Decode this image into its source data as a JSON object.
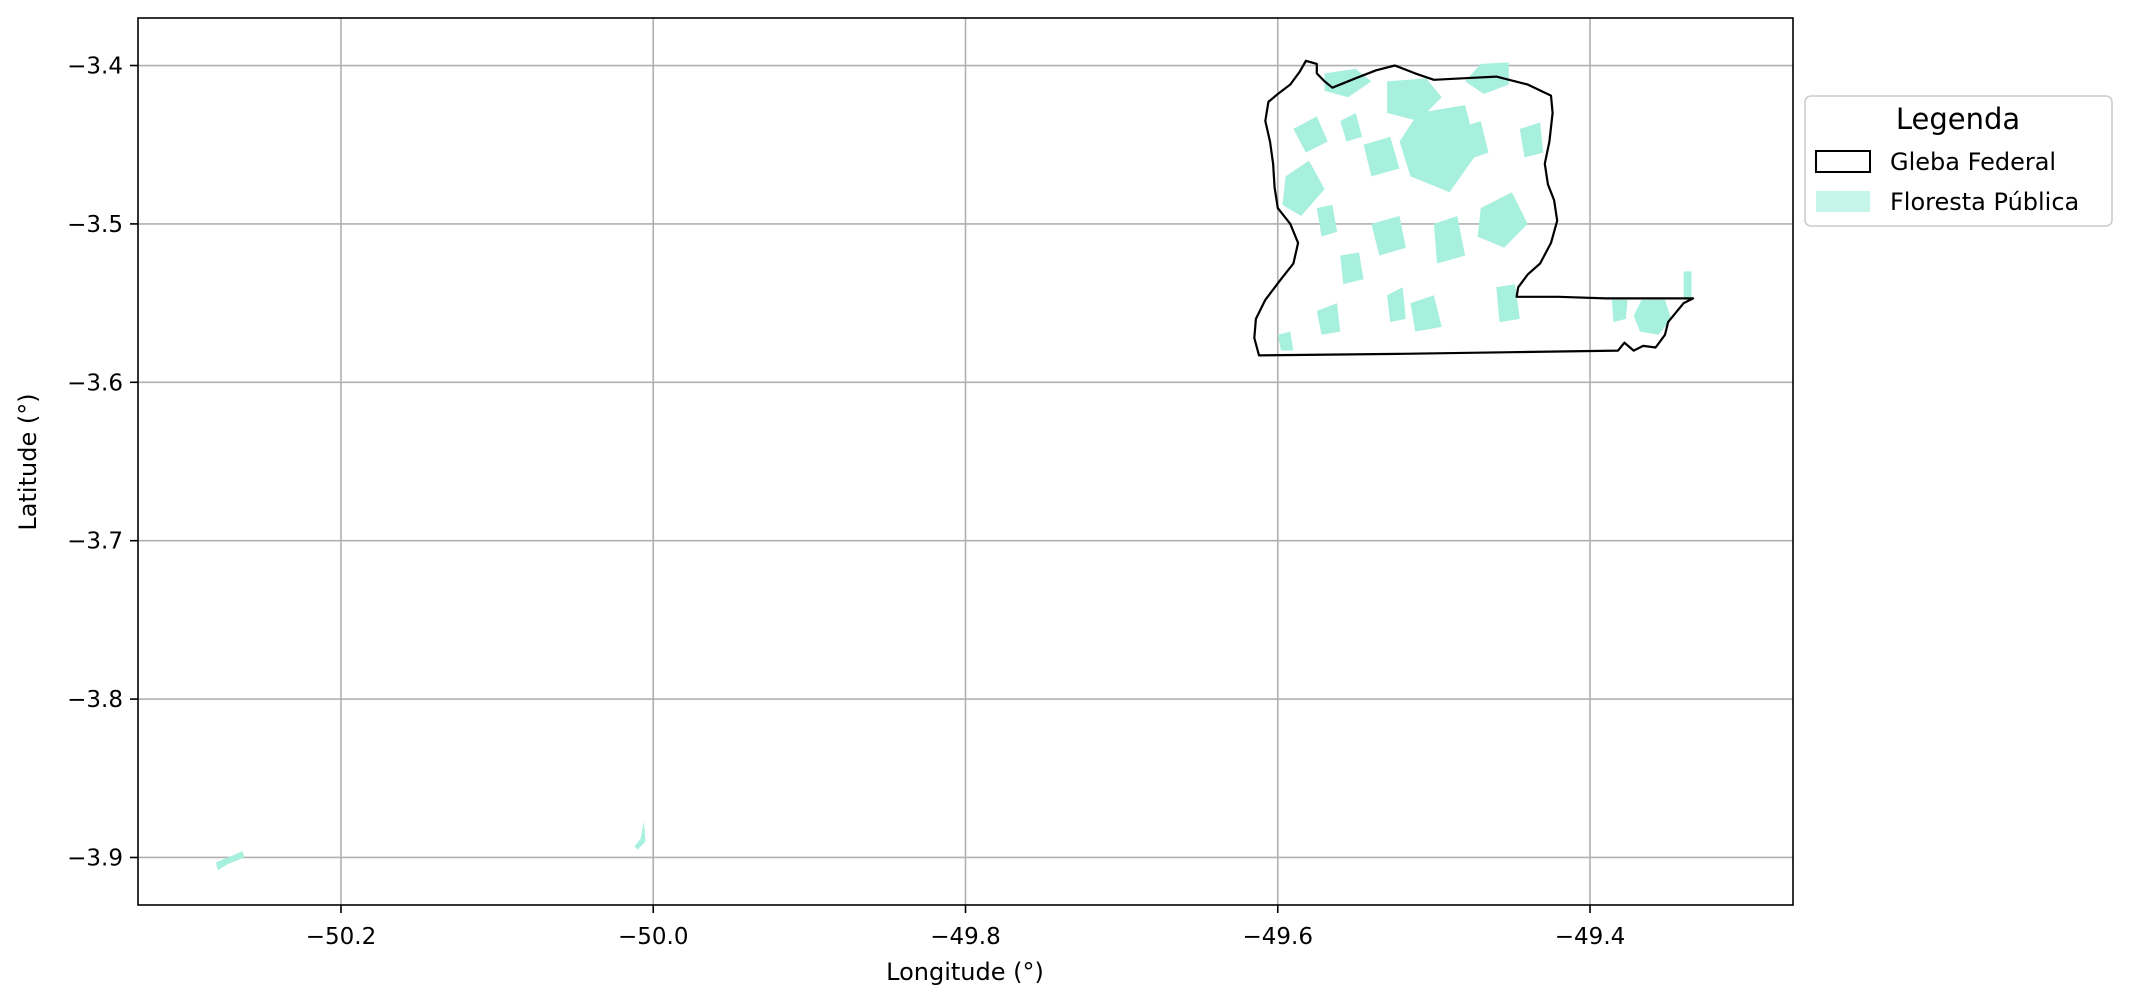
{
  "map": {
    "type": "geographic-plot",
    "xlabel": "Longitude (°)",
    "ylabel": "Latitude (°)",
    "xlim": [
      -50.33,
      -49.27
    ],
    "ylim": [
      -3.93,
      -3.37
    ],
    "grid": true,
    "x_ticks": [
      -50.2,
      -50.0,
      -49.8,
      -49.6,
      -49.4
    ],
    "x_tick_labels": [
      "−50.2",
      "−50.0",
      "−49.8",
      "−49.6",
      "−49.4"
    ],
    "y_ticks": [
      -3.4,
      -3.5,
      -3.6,
      -3.7,
      -3.8,
      -3.9
    ],
    "y_tick_labels": [
      "−3.4",
      "−3.5",
      "−3.6",
      "−3.7",
      "−3.8",
      "−3.9"
    ],
    "legend": {
      "title": "Legenda",
      "placement": "outside-right-top",
      "items": [
        {
          "label": "Gleba Federal",
          "style": "outline",
          "color": "#000000"
        },
        {
          "label": "Floresta Pública",
          "style": "fill",
          "color": "#a8f0de"
        }
      ]
    },
    "colors": {
      "gleba_outline": "#000000",
      "floresta_fill": "#a8f0de",
      "grid": "#b0b0b0"
    },
    "gleba_federal_boundary": [
      [
        -49.582,
        -3.397
      ],
      [
        -49.575,
        -3.399
      ],
      [
        -49.575,
        -3.405
      ],
      [
        -49.57,
        -3.41
      ],
      [
        -49.565,
        -3.414
      ],
      [
        -49.55,
        -3.408
      ],
      [
        -49.537,
        -3.403
      ],
      [
        -49.525,
        -3.4
      ],
      [
        -49.512,
        -3.405
      ],
      [
        -49.5,
        -3.409
      ],
      [
        -49.48,
        -3.408
      ],
      [
        -49.46,
        -3.407
      ],
      [
        -49.44,
        -3.412
      ],
      [
        -49.425,
        -3.419
      ],
      [
        -49.424,
        -3.43
      ],
      [
        -49.426,
        -3.448
      ],
      [
        -49.429,
        -3.462
      ],
      [
        -49.427,
        -3.475
      ],
      [
        -49.423,
        -3.485
      ],
      [
        -49.421,
        -3.498
      ],
      [
        -49.425,
        -3.512
      ],
      [
        -49.432,
        -3.525
      ],
      [
        -49.44,
        -3.532
      ],
      [
        -49.446,
        -3.54
      ],
      [
        -49.447,
        -3.546
      ],
      [
        -49.42,
        -3.546
      ],
      [
        -49.39,
        -3.547
      ],
      [
        -49.36,
        -3.547
      ],
      [
        -49.334,
        -3.547
      ],
      [
        -49.34,
        -3.55
      ],
      [
        -49.345,
        -3.556
      ],
      [
        -49.35,
        -3.562
      ],
      [
        -49.352,
        -3.57
      ],
      [
        -49.358,
        -3.578
      ],
      [
        -49.366,
        -3.577
      ],
      [
        -49.372,
        -3.58
      ],
      [
        -49.378,
        -3.575
      ],
      [
        -49.382,
        -3.58
      ],
      [
        -49.45,
        -3.581
      ],
      [
        -49.52,
        -3.582
      ],
      [
        -49.612,
        -3.583
      ],
      [
        -49.615,
        -3.572
      ],
      [
        -49.614,
        -3.56
      ],
      [
        -49.608,
        -3.548
      ],
      [
        -49.598,
        -3.535
      ],
      [
        -49.59,
        -3.525
      ],
      [
        -49.587,
        -3.512
      ],
      [
        -49.592,
        -3.5
      ],
      [
        -49.6,
        -3.49
      ],
      [
        -49.602,
        -3.477
      ],
      [
        -49.603,
        -3.462
      ],
      [
        -49.605,
        -3.448
      ],
      [
        -49.608,
        -3.435
      ],
      [
        -49.606,
        -3.423
      ],
      [
        -49.6,
        -3.418
      ],
      [
        -49.592,
        -3.412
      ],
      [
        -49.586,
        -3.404
      ]
    ],
    "floresta_publica_patches": [
      [
        [
          -49.57,
          -3.405
        ],
        [
          -49.55,
          -3.402
        ],
        [
          -49.54,
          -3.41
        ],
        [
          -49.555,
          -3.42
        ],
        [
          -49.57,
          -3.416
        ]
      ],
      [
        [
          -49.53,
          -3.41
        ],
        [
          -49.505,
          -3.408
        ],
        [
          -49.495,
          -3.42
        ],
        [
          -49.51,
          -3.435
        ],
        [
          -49.53,
          -3.43
        ]
      ],
      [
        [
          -49.47,
          -3.399
        ],
        [
          -49.452,
          -3.398
        ],
        [
          -49.452,
          -3.412
        ],
        [
          -49.468,
          -3.418
        ],
        [
          -49.48,
          -3.41
        ]
      ],
      [
        [
          -49.51,
          -3.43
        ],
        [
          -49.48,
          -3.425
        ],
        [
          -49.472,
          -3.455
        ],
        [
          -49.49,
          -3.48
        ],
        [
          -49.515,
          -3.47
        ],
        [
          -49.522,
          -3.448
        ]
      ],
      [
        [
          -49.47,
          -3.49
        ],
        [
          -49.45,
          -3.48
        ],
        [
          -49.44,
          -3.5
        ],
        [
          -49.455,
          -3.515
        ],
        [
          -49.472,
          -3.508
        ]
      ],
      [
        [
          -49.595,
          -3.47
        ],
        [
          -49.58,
          -3.46
        ],
        [
          -49.57,
          -3.478
        ],
        [
          -49.585,
          -3.495
        ],
        [
          -49.597,
          -3.488
        ]
      ],
      [
        [
          -49.59,
          -3.44
        ],
        [
          -49.575,
          -3.432
        ],
        [
          -49.568,
          -3.448
        ],
        [
          -49.582,
          -3.455
        ]
      ],
      [
        [
          -49.545,
          -3.45
        ],
        [
          -49.528,
          -3.445
        ],
        [
          -49.522,
          -3.465
        ],
        [
          -49.54,
          -3.47
        ]
      ],
      [
        [
          -49.54,
          -3.5
        ],
        [
          -49.522,
          -3.495
        ],
        [
          -49.518,
          -3.515
        ],
        [
          -49.535,
          -3.52
        ]
      ],
      [
        [
          -49.5,
          -3.5
        ],
        [
          -49.485,
          -3.495
        ],
        [
          -49.48,
          -3.52
        ],
        [
          -49.498,
          -3.525
        ]
      ],
      [
        [
          -49.56,
          -3.52
        ],
        [
          -49.548,
          -3.518
        ],
        [
          -49.545,
          -3.535
        ],
        [
          -49.558,
          -3.538
        ]
      ],
      [
        [
          -49.515,
          -3.55
        ],
        [
          -49.5,
          -3.545
        ],
        [
          -49.495,
          -3.565
        ],
        [
          -49.512,
          -3.568
        ]
      ],
      [
        [
          -49.46,
          -3.54
        ],
        [
          -49.448,
          -3.538
        ],
        [
          -49.445,
          -3.56
        ],
        [
          -49.458,
          -3.562
        ]
      ],
      [
        [
          -49.445,
          -3.44
        ],
        [
          -49.432,
          -3.436
        ],
        [
          -49.43,
          -3.455
        ],
        [
          -49.442,
          -3.458
        ]
      ],
      [
        [
          -49.575,
          -3.555
        ],
        [
          -49.562,
          -3.55
        ],
        [
          -49.56,
          -3.568
        ],
        [
          -49.572,
          -3.57
        ]
      ],
      [
        [
          -49.53,
          -3.545
        ],
        [
          -49.52,
          -3.54
        ],
        [
          -49.518,
          -3.56
        ],
        [
          -49.528,
          -3.562
        ]
      ],
      [
        [
          -49.6,
          -3.57
        ],
        [
          -49.592,
          -3.568
        ],
        [
          -49.59,
          -3.58
        ],
        [
          -49.598,
          -3.58
        ]
      ],
      [
        [
          -49.485,
          -3.44
        ],
        [
          -49.47,
          -3.435
        ],
        [
          -49.465,
          -3.455
        ],
        [
          -49.48,
          -3.46
        ]
      ],
      [
        [
          -49.575,
          -3.49
        ],
        [
          -49.565,
          -3.488
        ],
        [
          -49.562,
          -3.505
        ],
        [
          -49.572,
          -3.508
        ]
      ],
      [
        [
          -49.56,
          -3.435
        ],
        [
          -49.55,
          -3.43
        ],
        [
          -49.546,
          -3.445
        ],
        [
          -49.556,
          -3.448
        ]
      ],
      [
        [
          -49.367,
          -3.548
        ],
        [
          -49.352,
          -3.548
        ],
        [
          -49.348,
          -3.56
        ],
        [
          -49.356,
          -3.57
        ],
        [
          -49.368,
          -3.568
        ],
        [
          -49.372,
          -3.558
        ]
      ],
      [
        [
          -49.386,
          -3.548
        ],
        [
          -49.376,
          -3.548
        ],
        [
          -49.377,
          -3.56
        ],
        [
          -49.385,
          -3.562
        ]
      ],
      [
        [
          -49.34,
          -3.53
        ],
        [
          -49.335,
          -3.53
        ],
        [
          -49.335,
          -3.548
        ],
        [
          -49.34,
          -3.548
        ]
      ],
      [
        [
          -50.28,
          -3.903
        ],
        [
          -50.27,
          -3.899
        ],
        [
          -50.263,
          -3.896
        ],
        [
          -50.262,
          -3.9
        ],
        [
          -50.272,
          -3.904
        ],
        [
          -50.279,
          -3.908
        ]
      ],
      [
        [
          -50.012,
          -3.893
        ],
        [
          -50.008,
          -3.888
        ],
        [
          -50.006,
          -3.877
        ],
        [
          -50.005,
          -3.89
        ],
        [
          -50.01,
          -3.895
        ]
      ]
    ]
  }
}
